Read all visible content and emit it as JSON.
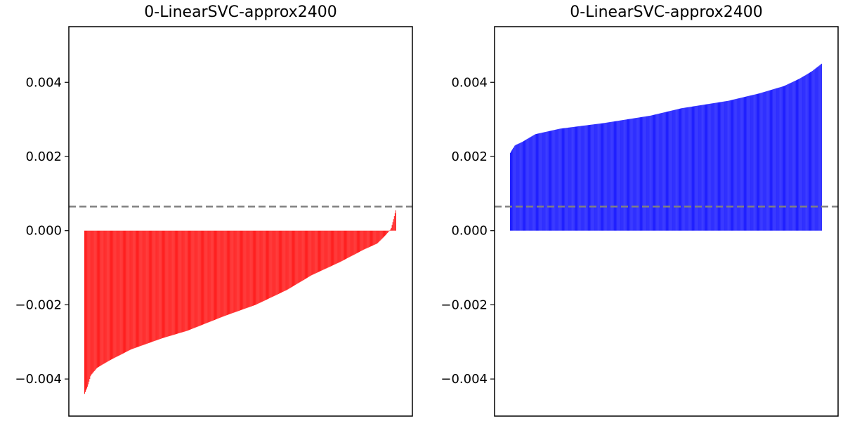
{
  "chart_data": [
    {
      "type": "bar",
      "title": "0-LinearSVC-approx2400",
      "xlabel": "",
      "ylabel": "",
      "ylim": [
        -0.005,
        0.0055
      ],
      "yticks": [
        -0.004,
        -0.002,
        0.0,
        0.002,
        0.004
      ],
      "ytick_labels": [
        "−0.004",
        "−0.002",
        "0.000",
        "0.002",
        "0.004"
      ],
      "grid": false,
      "xticks": "none",
      "bar_color": "#ff0000",
      "reference_line": {
        "y": 0.00065,
        "color": "#808080",
        "style": "dashed"
      },
      "value_profile": [
        [
          0.0,
          -0.0044
        ],
        [
          0.01,
          -0.0042
        ],
        [
          0.02,
          -0.0039
        ],
        [
          0.04,
          -0.0037
        ],
        [
          0.08,
          -0.0035
        ],
        [
          0.15,
          -0.0032
        ],
        [
          0.25,
          -0.0029
        ],
        [
          0.33,
          -0.0027
        ],
        [
          0.45,
          -0.0023
        ],
        [
          0.55,
          -0.002
        ],
        [
          0.65,
          -0.0016
        ],
        [
          0.73,
          -0.0012
        ],
        [
          0.82,
          -0.00085
        ],
        [
          0.9,
          -0.0005
        ],
        [
          0.94,
          -0.00035
        ],
        [
          0.97,
          -0.0001
        ],
        [
          0.985,
          5e-05
        ],
        [
          1.0,
          0.00055
        ]
      ]
    },
    {
      "type": "bar",
      "title": "0-LinearSVC-approx2400",
      "xlabel": "",
      "ylabel": "",
      "ylim": [
        -0.005,
        0.0055
      ],
      "yticks": [
        -0.004,
        -0.002,
        0.0,
        0.002,
        0.004
      ],
      "ytick_labels": [
        "−0.004",
        "−0.002",
        "0.000",
        "0.002",
        "0.004"
      ],
      "grid": false,
      "xticks": "none",
      "bar_color": "#0000ff",
      "reference_line": {
        "y": 0.00065,
        "color": "#808080",
        "style": "dashed"
      },
      "value_profile": [
        [
          0.0,
          0.0021
        ],
        [
          0.015,
          0.0023
        ],
        [
          0.04,
          0.0024
        ],
        [
          0.08,
          0.0026
        ],
        [
          0.16,
          0.00275
        ],
        [
          0.3,
          0.0029
        ],
        [
          0.45,
          0.0031
        ],
        [
          0.55,
          0.0033
        ],
        [
          0.7,
          0.0035
        ],
        [
          0.8,
          0.0037
        ],
        [
          0.88,
          0.0039
        ],
        [
          0.93,
          0.0041
        ],
        [
          0.97,
          0.0043
        ],
        [
          1.0,
          0.0045
        ]
      ]
    }
  ]
}
